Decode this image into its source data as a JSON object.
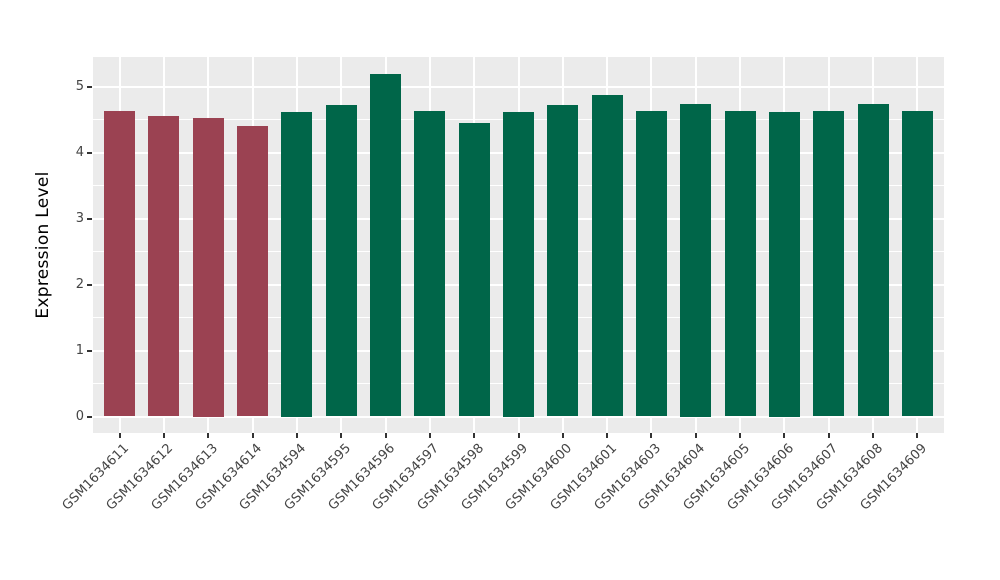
{
  "chart_data": {
    "type": "bar",
    "title": "",
    "xlabel": "",
    "ylabel": "Expression Level",
    "categories": [
      "GSM1634611",
      "GSM1634612",
      "GSM1634613",
      "GSM1634614",
      "GSM1634594",
      "GSM1634595",
      "GSM1634596",
      "GSM1634597",
      "GSM1634598",
      "GSM1634599",
      "GSM1634600",
      "GSM1634601",
      "GSM1634603",
      "GSM1634604",
      "GSM1634605",
      "GSM1634606",
      "GSM1634607",
      "GSM1634608",
      "GSM1634609"
    ],
    "values": [
      4.63,
      4.55,
      4.53,
      4.4,
      4.62,
      4.72,
      5.19,
      4.63,
      4.45,
      4.62,
      4.72,
      4.87,
      4.63,
      4.74,
      4.63,
      4.62,
      4.63,
      4.73,
      4.63
    ],
    "bar_colors": [
      "#9B4252",
      "#9B4252",
      "#9B4252",
      "#9B4252",
      "#006649",
      "#006649",
      "#006649",
      "#006649",
      "#006649",
      "#006649",
      "#006649",
      "#006649",
      "#006649",
      "#006649",
      "#006649",
      "#006649",
      "#006649",
      "#006649",
      "#006649"
    ],
    "palette": {
      "group_red": "#9B4252",
      "group_green": "#006649"
    },
    "yticks": [
      0,
      1,
      2,
      3,
      4,
      5
    ],
    "yticks_minor": [
      0.5,
      1.5,
      2.5,
      3.5,
      4.5
    ],
    "ylim": [
      -0.25,
      5.45
    ],
    "bar_width_fraction": 0.7,
    "x_axis_label_angle": 45,
    "grid": true,
    "legend": "none",
    "panel_bg": "#EBEBEB",
    "grid_color": "#FFFFFF"
  }
}
